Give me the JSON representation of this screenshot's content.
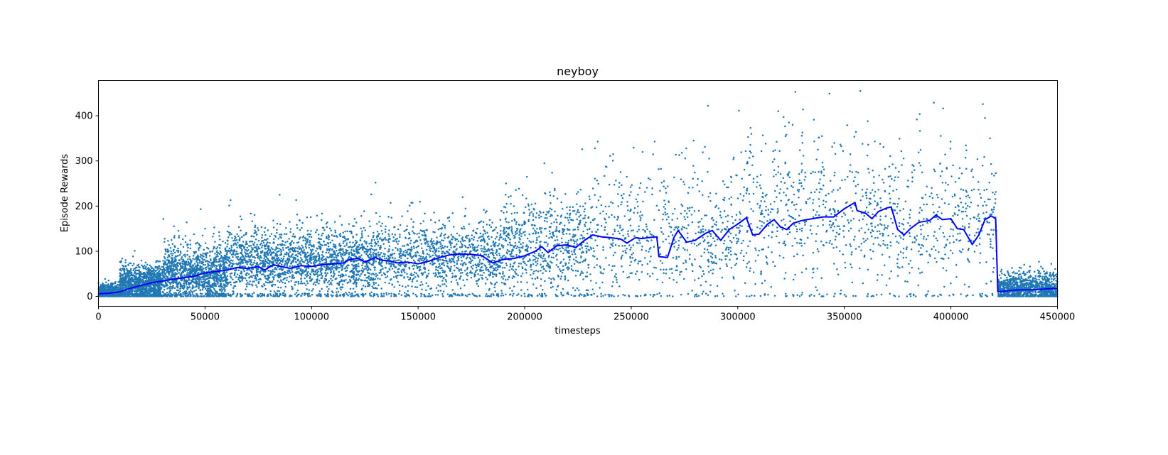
{
  "figure": {
    "title": "neyboy",
    "xlabel": "timesteps",
    "ylabel": "Episode Rewards",
    "colors": {
      "scatter": "#1f77b4",
      "line": "#0000ff",
      "axes": "#000000",
      "background": "#ffffff"
    }
  },
  "chart_data": {
    "type": "scatter",
    "title": "neyboy",
    "xlabel": "timesteps",
    "ylabel": "Episode Rewards",
    "xlim": [
      0,
      450000
    ],
    "ylim": [
      -22,
      478
    ],
    "xticks": [
      0,
      50000,
      100000,
      150000,
      200000,
      250000,
      300000,
      350000,
      400000,
      450000
    ],
    "xtick_labels": [
      "0",
      "50000",
      "100000",
      "150000",
      "200000",
      "250000",
      "300000",
      "350000",
      "400000",
      "450000"
    ],
    "yticks": [
      0,
      100,
      200,
      300,
      400
    ],
    "ytick_labels": [
      "0",
      "100",
      "200",
      "300",
      "400"
    ],
    "grid": false,
    "legend": null,
    "series": [
      {
        "name": "episode rewards",
        "kind": "scatter",
        "color": "#1f77b4",
        "marker_size": 2,
        "density_segments": [
          {
            "x_start": 0,
            "x_end": 10000,
            "count": 500,
            "mean": 8,
            "spread": 10,
            "max": 45
          },
          {
            "x_start": 10000,
            "x_end": 30000,
            "count": 1200,
            "mean": 25,
            "spread": 22,
            "max": 110
          },
          {
            "x_start": 30000,
            "x_end": 60000,
            "count": 1300,
            "mean": 45,
            "spread": 35,
            "max": 195
          },
          {
            "x_start": 60000,
            "x_end": 130000,
            "count": 2000,
            "mean": 72,
            "spread": 40,
            "max": 230
          },
          {
            "x_start": 130000,
            "x_end": 190000,
            "count": 1200,
            "mean": 80,
            "spread": 45,
            "max": 250
          },
          {
            "x_start": 190000,
            "x_end": 230000,
            "count": 700,
            "mean": 105,
            "spread": 60,
            "max": 330
          },
          {
            "x_start": 230000,
            "x_end": 300000,
            "count": 650,
            "mean": 130,
            "spread": 80,
            "max": 345
          },
          {
            "x_start": 300000,
            "x_end": 360000,
            "count": 520,
            "mean": 175,
            "spread": 95,
            "max": 455
          },
          {
            "x_start": 360000,
            "x_end": 421500,
            "count": 520,
            "mean": 165,
            "spread": 90,
            "max": 430
          },
          {
            "x_start": 422000,
            "x_end": 450000,
            "count": 1100,
            "mean": 16,
            "spread": 18,
            "max": 80
          }
        ],
        "outliers": [
          {
            "x": 286000,
            "y": 422
          },
          {
            "x": 327000,
            "y": 453
          },
          {
            "x": 343000,
            "y": 449
          },
          {
            "x": 392000,
            "y": 429
          },
          {
            "x": 415000,
            "y": 426
          },
          {
            "x": 319000,
            "y": 410
          },
          {
            "x": 324000,
            "y": 385
          },
          {
            "x": 384000,
            "y": 392
          },
          {
            "x": 416000,
            "y": 395
          },
          {
            "x": 85000,
            "y": 225
          },
          {
            "x": 62000,
            "y": 213
          },
          {
            "x": 128000,
            "y": 226
          },
          {
            "x": 130000,
            "y": 252
          },
          {
            "x": 48000,
            "y": 193
          },
          {
            "x": 17000,
            "y": 101
          },
          {
            "x": 227000,
            "y": 326
          },
          {
            "x": 233000,
            "y": 328
          },
          {
            "x": 261000,
            "y": 343
          }
        ]
      },
      {
        "name": "moving average",
        "kind": "line",
        "color": "#0000ff",
        "line_width": 2,
        "points": [
          [
            0,
            6
          ],
          [
            5000,
            7
          ],
          [
            10000,
            10
          ],
          [
            15000,
            18
          ],
          [
            20000,
            24
          ],
          [
            25000,
            30
          ],
          [
            30000,
            34
          ],
          [
            35000,
            38
          ],
          [
            40000,
            41
          ],
          [
            45000,
            45
          ],
          [
            50000,
            52
          ],
          [
            55000,
            55
          ],
          [
            60000,
            58
          ],
          [
            65000,
            64
          ],
          [
            70000,
            62
          ],
          [
            75000,
            66
          ],
          [
            78000,
            58
          ],
          [
            82000,
            70
          ],
          [
            86000,
            66
          ],
          [
            90000,
            62
          ],
          [
            95000,
            68
          ],
          [
            100000,
            66
          ],
          [
            105000,
            70
          ],
          [
            110000,
            72
          ],
          [
            115000,
            74
          ],
          [
            118000,
            82
          ],
          [
            122000,
            84
          ],
          [
            125000,
            76
          ],
          [
            130000,
            86
          ],
          [
            133000,
            80
          ],
          [
            137000,
            78
          ],
          [
            140000,
            74
          ],
          [
            145000,
            76
          ],
          [
            150000,
            72
          ],
          [
            155000,
            78
          ],
          [
            160000,
            86
          ],
          [
            165000,
            92
          ],
          [
            170000,
            94
          ],
          [
            175000,
            93
          ],
          [
            180000,
            90
          ],
          [
            185000,
            74
          ],
          [
            190000,
            82
          ],
          [
            195000,
            84
          ],
          [
            200000,
            90
          ],
          [
            205000,
            100
          ],
          [
            208000,
            110
          ],
          [
            211000,
            97
          ],
          [
            215000,
            112
          ],
          [
            220000,
            114
          ],
          [
            224000,
            108
          ],
          [
            228000,
            124
          ],
          [
            232000,
            136
          ],
          [
            236000,
            132
          ],
          [
            240000,
            130
          ],
          [
            245000,
            127
          ],
          [
            248000,
            118
          ],
          [
            252000,
            130
          ],
          [
            255000,
            128
          ],
          [
            258000,
            130
          ],
          [
            262000,
            132
          ],
          [
            263000,
            88
          ],
          [
            267000,
            86
          ],
          [
            270000,
            130
          ],
          [
            272000,
            146
          ],
          [
            276000,
            120
          ],
          [
            280000,
            124
          ],
          [
            285000,
            140
          ],
          [
            288000,
            146
          ],
          [
            292000,
            124
          ],
          [
            296000,
            148
          ],
          [
            300000,
            160
          ],
          [
            304000,
            174
          ],
          [
            307000,
            136
          ],
          [
            310000,
            138
          ],
          [
            314000,
            160
          ],
          [
            317000,
            170
          ],
          [
            320000,
            154
          ],
          [
            323000,
            148
          ],
          [
            326000,
            162
          ],
          [
            330000,
            168
          ],
          [
            335000,
            172
          ],
          [
            340000,
            176
          ],
          [
            345000,
            176
          ],
          [
            350000,
            194
          ],
          [
            355000,
            208
          ],
          [
            356000,
            190
          ],
          [
            360000,
            184
          ],
          [
            363000,
            172
          ],
          [
            366000,
            188
          ],
          [
            370000,
            196
          ],
          [
            372000,
            198
          ],
          [
            375000,
            148
          ],
          [
            378000,
            136
          ],
          [
            381000,
            150
          ],
          [
            385000,
            164
          ],
          [
            390000,
            168
          ],
          [
            393000,
            180
          ],
          [
            396000,
            170
          ],
          [
            400000,
            172
          ],
          [
            403000,
            150
          ],
          [
            406000,
            148
          ],
          [
            410000,
            115
          ],
          [
            413000,
            135
          ],
          [
            416000,
            170
          ],
          [
            419000,
            178
          ],
          [
            421000,
            172
          ],
          [
            422000,
            10
          ],
          [
            430000,
            14
          ],
          [
            440000,
            15
          ],
          [
            450000,
            18
          ]
        ]
      }
    ]
  }
}
